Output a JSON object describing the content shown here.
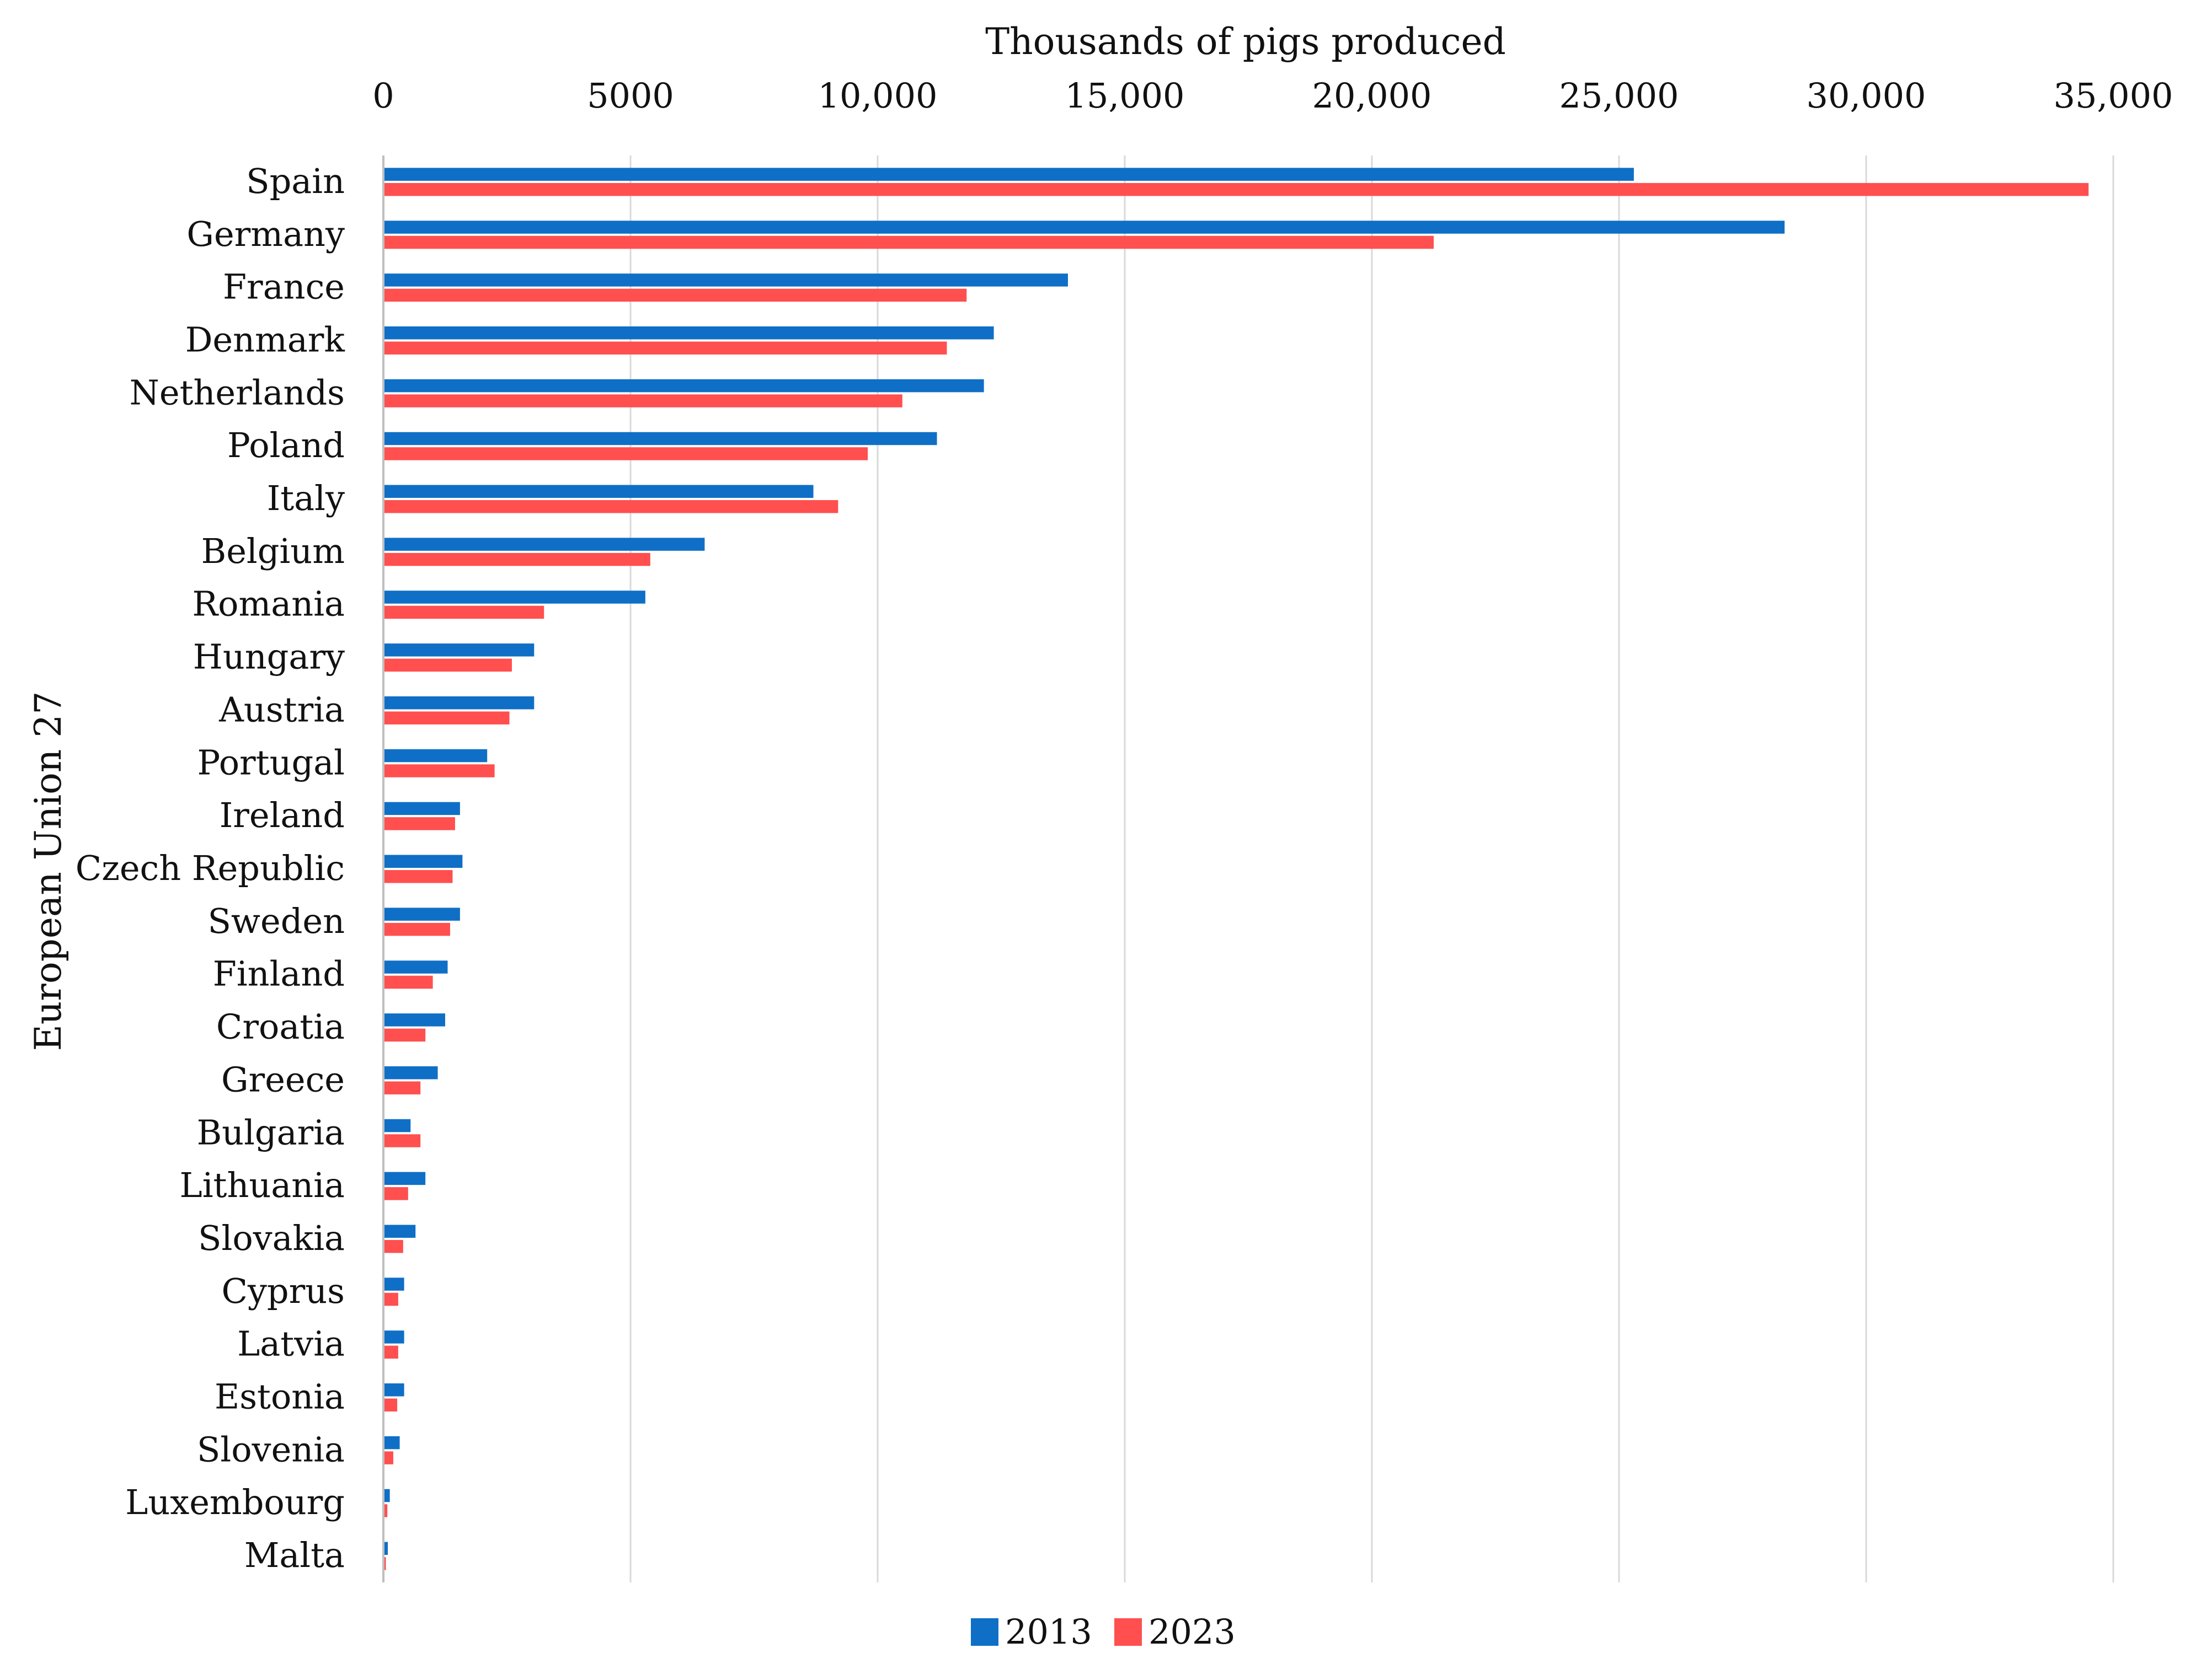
{
  "chart_data": {
    "type": "bar",
    "orientation": "horizontal",
    "title": "Thousands of pigs produced",
    "ylabel": "European Union 27",
    "xlabel": "Thousands of pigs produced",
    "xlim": [
      0,
      35000
    ],
    "xticks": [
      0,
      5000,
      10000,
      15000,
      20000,
      25000,
      30000,
      35000
    ],
    "xtick_labels": [
      "0",
      "5000",
      "10,000",
      "15,000",
      "20,000",
      "25,000",
      "30,000",
      "35,000"
    ],
    "grid": true,
    "legend_position": "bottom",
    "categories": [
      "Spain",
      "Germany",
      "France",
      "Denmark",
      "Netherlands",
      "Poland",
      "Italy",
      "Belgium",
      "Romania",
      "Hungary",
      "Austria",
      "Portugal",
      "Ireland",
      "Czech Republic",
      "Sweden",
      "Finland",
      "Croatia",
      "Greece",
      "Bulgaria",
      "Lithuania",
      "Slovakia",
      "Cyprus",
      "Latvia",
      "Estonia",
      "Slovenia",
      "Luxembourg",
      "Malta"
    ],
    "series": [
      {
        "name": "2013",
        "color": "#0f6fc6",
        "values": [
          25300,
          28350,
          13850,
          12350,
          12150,
          11200,
          8700,
          6500,
          5300,
          3050,
          3050,
          2100,
          1550,
          1600,
          1550,
          1300,
          1250,
          1100,
          550,
          850,
          650,
          420,
          420,
          420,
          330,
          130,
          90
        ]
      },
      {
        "name": "2023",
        "color": "#ff4f4f",
        "values": [
          34500,
          21250,
          11800,
          11400,
          10500,
          9800,
          9200,
          5400,
          3250,
          2600,
          2550,
          2250,
          1450,
          1400,
          1350,
          1000,
          850,
          750,
          750,
          500,
          400,
          300,
          300,
          280,
          200,
          80,
          50
        ]
      }
    ]
  }
}
